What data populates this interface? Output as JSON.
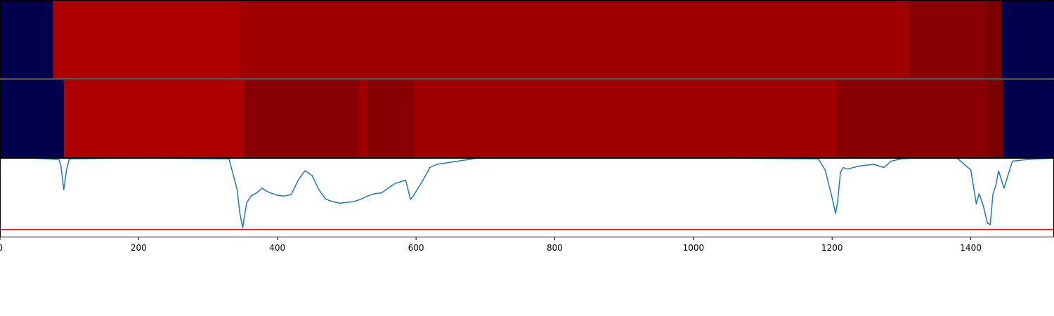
{
  "chart_data": {
    "type": "heatmap",
    "x_range": [
      0,
      1520
    ],
    "x_ticks": [
      0,
      200,
      400,
      600,
      800,
      1000,
      1200,
      1400
    ],
    "x_tick_labels": [
      "0",
      "200",
      "400",
      "600",
      "800",
      "1000",
      "1200",
      "1400"
    ],
    "tracks": [
      {
        "segments": [
          {
            "start": 0,
            "end": 76,
            "color": "#00004c"
          },
          {
            "start": 76,
            "end": 346,
            "color": "#ac0000"
          },
          {
            "start": 346,
            "end": 1310,
            "color": "#a00000"
          },
          {
            "start": 1310,
            "end": 1420,
            "color": "#8a0000"
          },
          {
            "start": 1420,
            "end": 1444,
            "color": "#7d0000"
          },
          {
            "start": 1444,
            "end": 1520,
            "color": "#00004c"
          }
        ]
      },
      {
        "segments": [
          {
            "start": 0,
            "end": 92,
            "color": "#00004c"
          },
          {
            "start": 92,
            "end": 352,
            "color": "#ac0000"
          },
          {
            "start": 352,
            "end": 518,
            "color": "#8a0000"
          },
          {
            "start": 518,
            "end": 528,
            "color": "#a00000"
          },
          {
            "start": 528,
            "end": 598,
            "color": "#8a0000"
          },
          {
            "start": 598,
            "end": 1206,
            "color": "#a00000"
          },
          {
            "start": 1206,
            "end": 1424,
            "color": "#8a0000"
          },
          {
            "start": 1424,
            "end": 1447,
            "color": "#7d0000"
          },
          {
            "start": 1447,
            "end": 1520,
            "color": "#00004c"
          }
        ]
      }
    ],
    "line": {
      "color": "#1f77b4",
      "y_range": [
        0,
        1
      ],
      "x": [
        45,
        85,
        88,
        92,
        96,
        100,
        200,
        330,
        336,
        342,
        346,
        350,
        352,
        356,
        362,
        370,
        378,
        385,
        390,
        400,
        410,
        420,
        430,
        440,
        450,
        460,
        470,
        480,
        490,
        500,
        510,
        520,
        530,
        540,
        550,
        560,
        570,
        585,
        592,
        596,
        600,
        610,
        620,
        630,
        660,
        690,
        700,
        1000,
        1180,
        1190,
        1200,
        1205,
        1208,
        1212,
        1216,
        1222,
        1240,
        1260,
        1275,
        1285,
        1300,
        1320,
        1380,
        1400,
        1408,
        1412,
        1418,
        1424,
        1428,
        1432,
        1436,
        1440,
        1448,
        1460,
        1480,
        1520
      ],
      "y": [
        1.0,
        0.98,
        0.9,
        0.6,
        0.85,
        0.99,
        1.0,
        0.99,
        0.8,
        0.6,
        0.3,
        0.12,
        0.24,
        0.44,
        0.52,
        0.56,
        0.62,
        0.58,
        0.56,
        0.53,
        0.52,
        0.54,
        0.72,
        0.84,
        0.78,
        0.6,
        0.48,
        0.45,
        0.43,
        0.44,
        0.45,
        0.48,
        0.52,
        0.55,
        0.56,
        0.62,
        0.68,
        0.72,
        0.48,
        0.52,
        0.58,
        0.72,
        0.88,
        0.92,
        0.96,
        1.0,
        1.0,
        1.0,
        0.99,
        0.85,
        0.5,
        0.3,
        0.45,
        0.82,
        0.88,
        0.86,
        0.9,
        0.92,
        0.88,
        0.96,
        0.99,
        1.0,
        1.0,
        0.85,
        0.42,
        0.55,
        0.4,
        0.18,
        0.16,
        0.55,
        0.65,
        0.84,
        0.62,
        0.96,
        0.98,
        1.0
      ]
    },
    "threshold": {
      "y": 0.1,
      "color": "#ff0000"
    }
  }
}
